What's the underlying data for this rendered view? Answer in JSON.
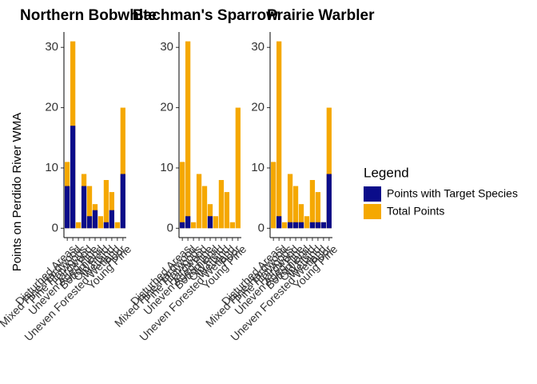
{
  "chart_data": [
    {
      "type": "bar",
      "title": "Northern Bobwhite",
      "y_label": "Points on Perdido River WMA",
      "legend_title": "Legend",
      "legend": "right",
      "categories": [
        "Disturbed Areas",
        "Mixed Pine-Hardwood",
        "Pine Flatwoods",
        "Hardwood",
        "Uneven Aged Pine",
        "Bottomland",
        "Old Field",
        "Wetland",
        "Uneven Forested Wetland",
        "Poor",
        "Young Pine"
      ],
      "series": [
        {
          "name": "Points with Target Species",
          "color": "#0b0c8a",
          "values": [
            7,
            17,
            0,
            7,
            2,
            3,
            0,
            1,
            3,
            0,
            9
          ]
        },
        {
          "name": "Total Points",
          "color": "#f5a800",
          "values": [
            11,
            31,
            1,
            9,
            7,
            4,
            2,
            8,
            6,
            1,
            20
          ]
        }
      ],
      "ylim": [
        -1.55,
        32.55
      ],
      "yticks": [
        0,
        10,
        20,
        30
      ]
    },
    {
      "type": "bar",
      "title": "Bachman's Sparrow",
      "categories": [
        "Disturbed Areas",
        "Mixed Pine-Hardwood",
        "Pine Flatwoods",
        "Hardwood",
        "Uneven Aged Pine",
        "Bottomland",
        "Old Field",
        "Wetland",
        "Uneven Forested Wetland",
        "Poor",
        "Young Pine"
      ],
      "series": [
        {
          "name": "Points with Target Species",
          "color": "#0b0c8a",
          "values": [
            1,
            2,
            0,
            0,
            0,
            2,
            0,
            0,
            0,
            0,
            0
          ]
        },
        {
          "name": "Total Points",
          "color": "#f5a800",
          "values": [
            11,
            31,
            1,
            9,
            7,
            4,
            2,
            8,
            6,
            1,
            20
          ]
        }
      ],
      "ylim": [
        -1.55,
        32.55
      ],
      "yticks": [
        0,
        10,
        20,
        30
      ]
    },
    {
      "type": "bar",
      "title": "Prairie Warbler",
      "categories": [
        "Disturbed Areas",
        "Mixed Pine-Hardwood",
        "Pine Flatwoods",
        "Hardwood",
        "Uneven Aged Pine",
        "Bottomland",
        "Old Field",
        "Wetland",
        "Uneven Forested Wetland",
        "Poor",
        "Young Pine"
      ],
      "series": [
        {
          "name": "Points with Target Species",
          "color": "#0b0c8a",
          "values": [
            0,
            2,
            0,
            1,
            1,
            1,
            0,
            1,
            1,
            1,
            9
          ]
        },
        {
          "name": "Total Points",
          "color": "#f5a800",
          "values": [
            11,
            31,
            1,
            9,
            7,
            4,
            2,
            8,
            6,
            1,
            20
          ]
        }
      ],
      "ylim": [
        -1.55,
        32.55
      ],
      "yticks": [
        0,
        10,
        20,
        30
      ]
    }
  ]
}
